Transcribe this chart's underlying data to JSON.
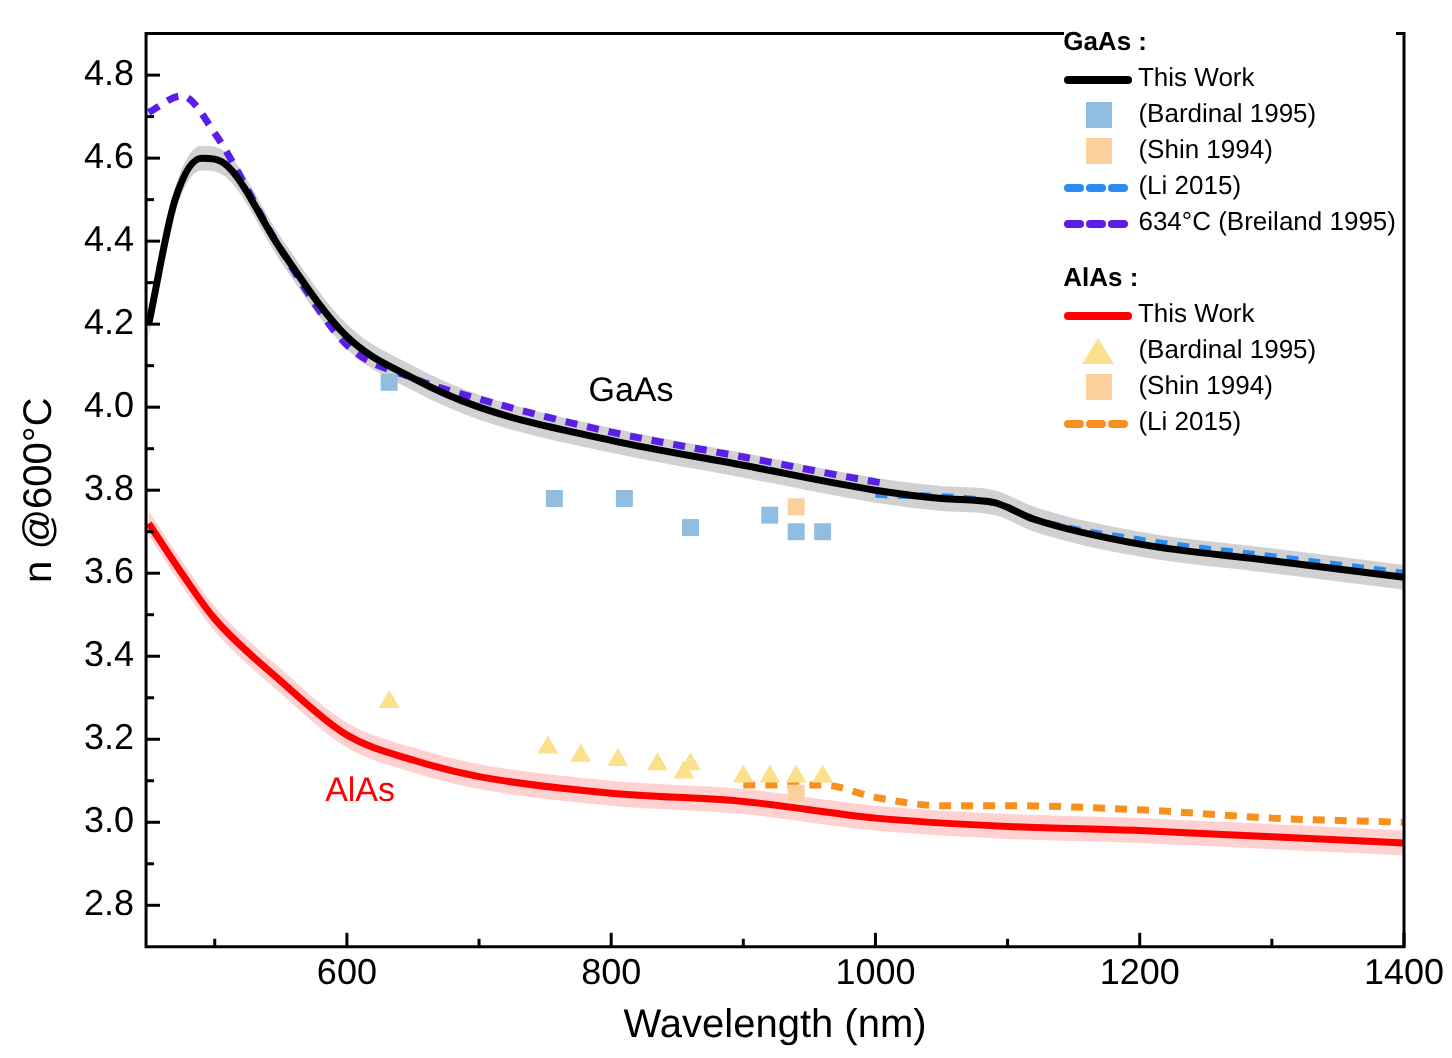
{
  "chart_data": {
    "type": "line",
    "xlabel": "Wavelength (nm)",
    "ylabel": "n @600°C",
    "xlim": [
      448,
      1400
    ],
    "ylim": [
      2.7,
      4.9
    ],
    "xticks": [
      {
        "value": 500,
        "label": null
      },
      600,
      {
        "value": 700,
        "label": null
      },
      800,
      {
        "value": 900,
        "label": null
      },
      1000,
      {
        "value": 1100,
        "label": null
      },
      1200,
      {
        "value": 1300,
        "label": null
      },
      1400
    ],
    "yticks": [
      2.8,
      {
        "value": 2.9,
        "label": null
      },
      "3.0",
      {
        "value": 3.1,
        "label": null
      },
      3.2,
      {
        "value": 3.3,
        "label": null
      },
      3.4,
      {
        "value": 3.5,
        "label": null
      },
      3.6,
      {
        "value": 3.7,
        "label": null
      },
      3.8,
      {
        "value": 3.9,
        "label": null
      },
      "4.0",
      {
        "value": 4.1,
        "label": null
      },
      4.2,
      {
        "value": 4.3,
        "label": null
      },
      4.4,
      {
        "value": 4.5,
        "label": null
      },
      4.6,
      {
        "value": 4.7,
        "label": null
      },
      4.8
    ],
    "grid": false,
    "legend": "top right",
    "annotations": [
      "GaAs :",
      "AlAs :",
      "GaAs",
      "AlAs"
    ],
    "series": [
      {
        "name": "This Work",
        "color": "#000000",
        "line_style": "solid",
        "marker": "none",
        "x": [
          450,
          470,
          490,
          510,
          550,
          600,
          650,
          700,
          800,
          900,
          1000,
          1050,
          1090,
          1120,
          1200,
          1300,
          1400
        ],
        "values": [
          4.2,
          4.5,
          4.6,
          4.58,
          4.38,
          4.17,
          4.07,
          4.0,
          3.92,
          3.86,
          3.8,
          3.78,
          3.77,
          3.73,
          3.67,
          3.63,
          3.59
        ],
        "lower": [
          4.17,
          4.47,
          4.57,
          4.55,
          4.35,
          4.14,
          4.04,
          3.97,
          3.89,
          3.83,
          3.77,
          3.75,
          3.74,
          3.7,
          3.64,
          3.6,
          3.56
        ],
        "upper": [
          4.23,
          4.53,
          4.63,
          4.61,
          4.41,
          4.2,
          4.1,
          4.03,
          3.95,
          3.89,
          3.83,
          3.81,
          3.8,
          3.76,
          3.7,
          3.66,
          3.62
        ]
      },
      {
        "name": "(Bardinal 1995)",
        "type": "scatter",
        "color": "#90bde0",
        "marker": "square",
        "x": [
          632,
          757,
          810,
          860,
          920,
          940,
          960
        ],
        "values": [
          4.06,
          3.78,
          3.78,
          3.71,
          3.74,
          3.7,
          3.7
        ]
      },
      {
        "name": "(Shin 1994)",
        "type": "scatter",
        "color": "#fcd09c",
        "marker": "square",
        "x": [
          940
        ],
        "values": [
          3.76
        ]
      },
      {
        "name": "(Li 2015)",
        "color": "#2a8cf0",
        "line_style": "dashed",
        "marker": "none",
        "x": [
          1000,
          1090,
          1120,
          1200,
          1300,
          1400
        ],
        "values": [
          3.79,
          3.77,
          3.73,
          3.68,
          3.64,
          3.6
        ]
      },
      {
        "name": "634°C (Breiland 1995)",
        "color": "#5a1ee6",
        "line_style": "dashed",
        "marker": "none",
        "x": [
          450,
          475,
          500,
          550,
          600,
          650,
          700,
          800,
          900,
          1000,
          1010
        ],
        "values": [
          4.71,
          4.75,
          4.66,
          4.38,
          4.15,
          4.07,
          4.02,
          3.94,
          3.88,
          3.82,
          3.815
        ]
      },
      {
        "name": "This Work",
        "color": "#ff0000",
        "line_style": "solid",
        "marker": "none",
        "x": [
          450,
          475,
          500,
          550,
          600,
          650,
          700,
          800,
          900,
          1000,
          1100,
          1200,
          1300,
          1400
        ],
        "values": [
          3.72,
          3.6,
          3.49,
          3.34,
          3.21,
          3.15,
          3.11,
          3.07,
          3.05,
          3.01,
          2.99,
          2.98,
          2.965,
          2.95
        ],
        "lower": [
          3.69,
          3.57,
          3.46,
          3.31,
          3.18,
          3.12,
          3.08,
          3.04,
          3.02,
          2.98,
          2.96,
          2.95,
          2.935,
          2.92
        ],
        "upper": [
          3.75,
          3.63,
          3.52,
          3.37,
          3.24,
          3.18,
          3.14,
          3.1,
          3.08,
          3.04,
          3.02,
          3.01,
          2.995,
          2.98
        ]
      },
      {
        "name": "(Bardinal 1995)",
        "type": "scatter",
        "color": "#fde08c",
        "marker": "triangle",
        "x": [
          632,
          752,
          777,
          805,
          835,
          855,
          860,
          900,
          920,
          940,
          960
        ],
        "values": [
          3.29,
          3.18,
          3.16,
          3.15,
          3.14,
          3.12,
          3.14,
          3.11,
          3.11,
          3.11,
          3.11
        ]
      },
      {
        "name": "(Shin 1994)",
        "type": "scatter",
        "color": "#fcd09c",
        "marker": "square",
        "x": [
          940
        ],
        "values": [
          3.07
        ]
      },
      {
        "name": "(Li 2015)",
        "color": "#f7901e",
        "line_style": "dashed",
        "marker": "none",
        "x": [
          900,
          960,
          1000,
          1050,
          1100,
          1200,
          1300,
          1400
        ],
        "values": [
          3.09,
          3.09,
          3.06,
          3.04,
          3.04,
          3.03,
          3.01,
          3.0
        ]
      }
    ]
  }
}
